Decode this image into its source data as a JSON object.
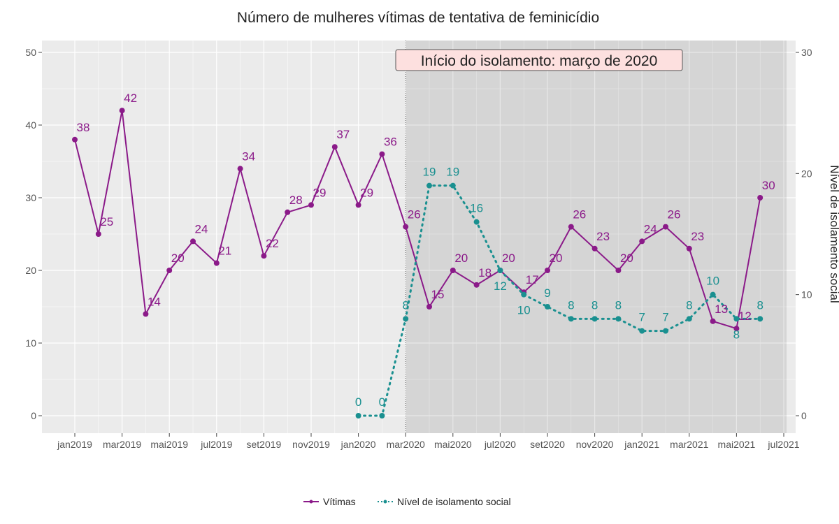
{
  "chart_data": {
    "type": "line",
    "title": "Número de mulheres vítimas de tentativa de feminicídio",
    "ylabel_right": "Nível de isolamento social",
    "annotation": "Início do isolamento: março de 2020",
    "annotation_x": "mar2020",
    "x_ticks": [
      "jan2019",
      "mar2019",
      "mai2019",
      "jul2019",
      "set2019",
      "nov2019",
      "jan2020",
      "mar2020",
      "mai2020",
      "jul2020",
      "set2020",
      "nov2020",
      "jan2021",
      "mar2021",
      "mai2021",
      "jul2021"
    ],
    "y_left": {
      "range": [
        0,
        50
      ],
      "ticks": [
        0,
        10,
        20,
        30,
        40,
        50
      ]
    },
    "y_right": {
      "range": [
        0,
        30
      ],
      "ticks": [
        0,
        10,
        20,
        30
      ]
    },
    "months": [
      "jan2019",
      "fev2019",
      "mar2019",
      "abr2019",
      "mai2019",
      "jun2019",
      "jul2019",
      "ago2019",
      "set2019",
      "out2019",
      "nov2019",
      "dez2019",
      "jan2020",
      "fev2020",
      "mar2020",
      "abr2020",
      "mai2020",
      "jun2020",
      "jul2020",
      "ago2020",
      "set2020",
      "out2020",
      "nov2020",
      "dez2020",
      "jan2021",
      "fev2021",
      "mar2021",
      "abr2021",
      "mai2021",
      "jun2021"
    ],
    "series": [
      {
        "name": "Vítimas",
        "axis": "left",
        "color": "#8b1a89",
        "style": "solid",
        "values": [
          38,
          25,
          42,
          14,
          20,
          24,
          21,
          34,
          22,
          28,
          29,
          37,
          29,
          36,
          26,
          15,
          20,
          18,
          20,
          17,
          20,
          26,
          23,
          20,
          24,
          26,
          23,
          13,
          12,
          30
        ]
      },
      {
        "name": "Nível de isolamento social",
        "axis": "right",
        "color": "#1a9090",
        "style": "dotted",
        "values": [
          null,
          null,
          null,
          null,
          null,
          null,
          null,
          null,
          null,
          null,
          null,
          null,
          0,
          0,
          8,
          19,
          19,
          16,
          12,
          10,
          9,
          8,
          8,
          8,
          7,
          7,
          8,
          10,
          8,
          8
        ]
      }
    ],
    "grid": true,
    "legend": "bottom",
    "shaded_region_from": "mar2020"
  }
}
